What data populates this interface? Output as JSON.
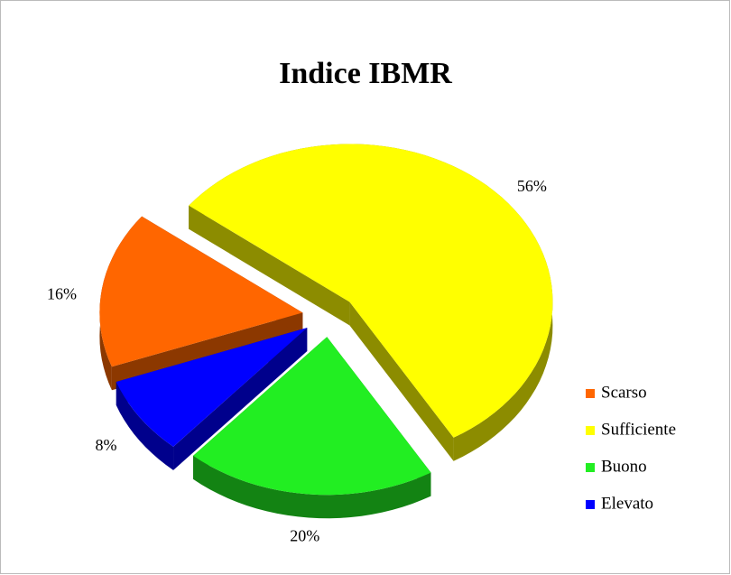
{
  "chart_data": {
    "type": "pie",
    "title": "Indice IBMR",
    "categories": [
      "Scarso",
      "Sufficiente",
      "Buono",
      "Elevato"
    ],
    "values": [
      16,
      56,
      20,
      8
    ],
    "value_labels": [
      "16%",
      "56%",
      "20%",
      "8%"
    ],
    "colors": [
      "#ff6600",
      "#ffff00",
      "#22ee22",
      "#0000ff"
    ],
    "legend": "right"
  }
}
